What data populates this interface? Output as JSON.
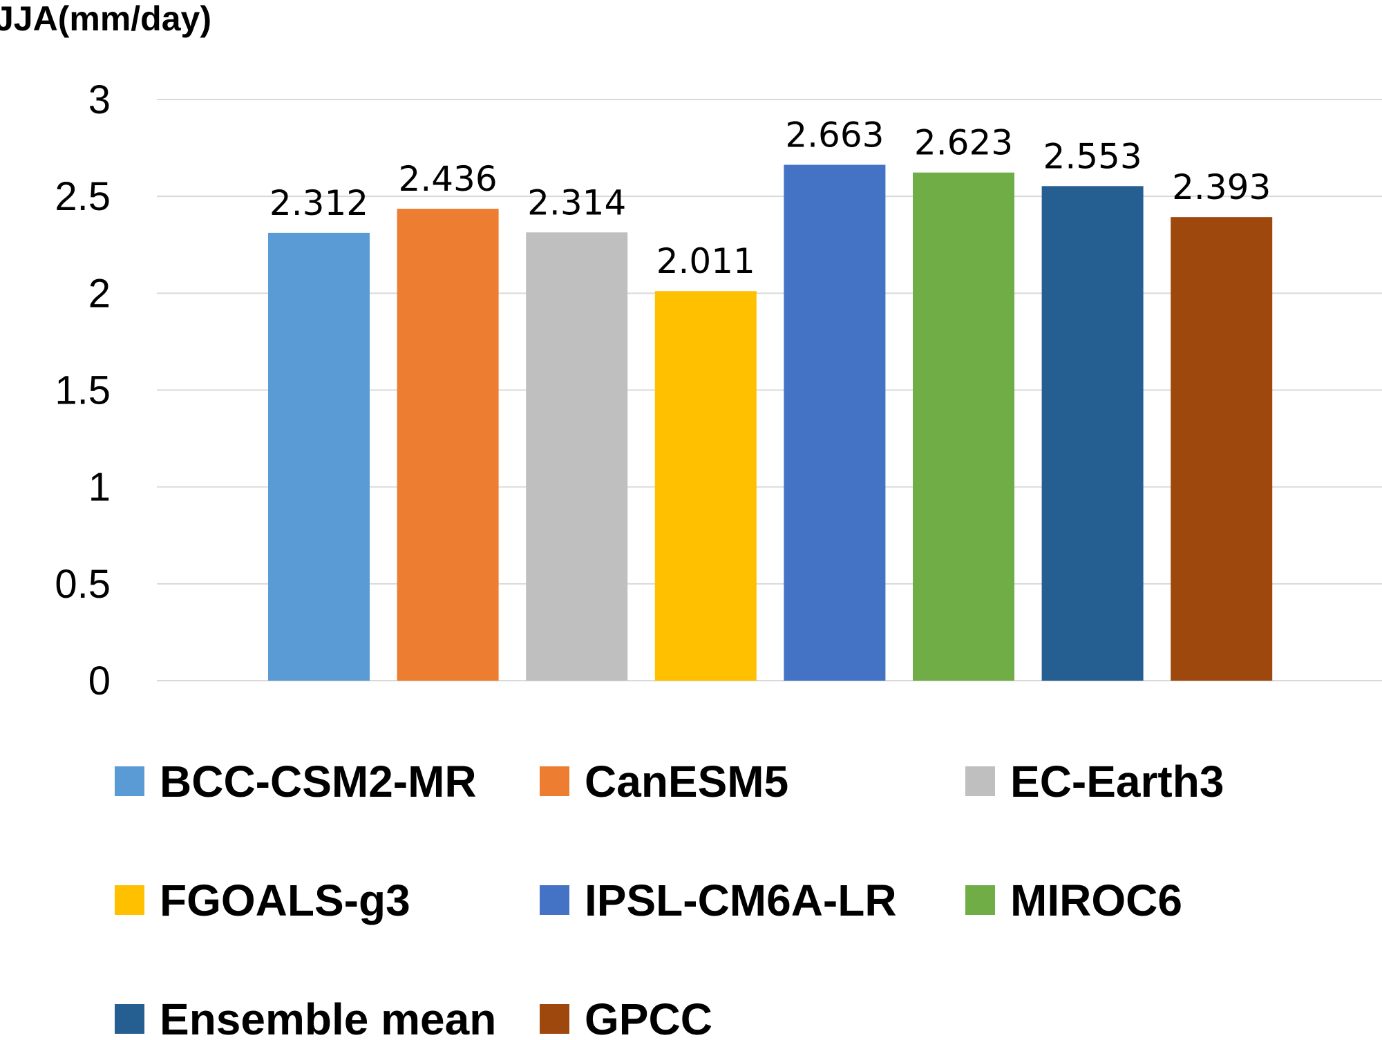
{
  "chart_data": {
    "type": "bar",
    "title": "",
    "xlabel": "",
    "ylabel": "JJA(mm/day)",
    "ylim": [
      0,
      3
    ],
    "yticks": [
      0,
      0.5,
      1,
      1.5,
      2,
      2.5,
      3
    ],
    "ytick_labels": [
      "0",
      "0.5",
      "1",
      "1.5",
      "2",
      "2.5",
      "3"
    ],
    "grid": true,
    "legend_position": "bottom",
    "categories": [
      "BCC-CSM2-MR",
      "CanESM5",
      "EC-Earth3",
      "FGOALS-g3",
      "IPSL-CM6A-LR",
      "MIROC6",
      "Ensemble mean",
      "GPCC"
    ],
    "values": [
      2.312,
      2.436,
      2.314,
      2.011,
      2.663,
      2.623,
      2.553,
      2.393
    ],
    "value_labels": [
      "2.312",
      "2.436",
      "2.314",
      "2.011",
      "2.663",
      "2.623",
      "2.553",
      "2.393"
    ],
    "colors": [
      "#5b9bd5",
      "#ed7d31",
      "#bfbfbf",
      "#ffc000",
      "#4472c4",
      "#70ad47",
      "#255e91",
      "#9e480e"
    ]
  }
}
